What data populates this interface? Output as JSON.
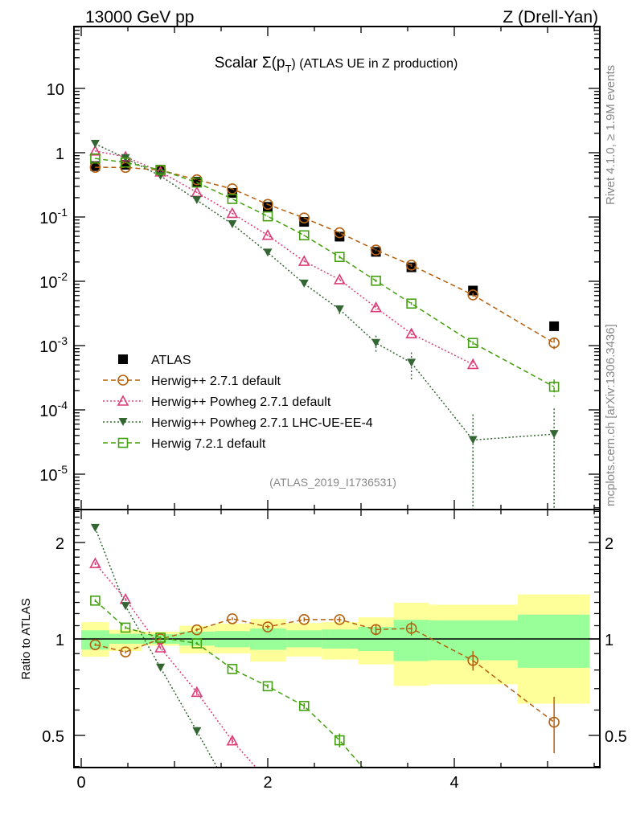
{
  "header": {
    "left": "13000 GeV pp",
    "right": "Z (Drell-Yan)",
    "title_prefix": "Scalar Σ(p",
    "title_sub": "T",
    "title_suffix": ") (ATLAS UE in Z production)",
    "side_top": "Rivet 4.1.0, ≥ 1.9M events",
    "side_bottom": "mcplots.cern.ch [arXiv:1306.3436]",
    "reference": "(ATLAS_2019_I1736531)"
  },
  "colors": {
    "atlas": "#000000",
    "herwigpp_default": "#b5600f",
    "powheg_default": "#dd3c78",
    "powheg_lhcue": "#336633",
    "herwig7": "#44a010",
    "band_total": "#ffff99",
    "band_stat": "#99ff99"
  },
  "chart_data": {
    "type": "scatter",
    "title": "Scalar Σ(p_T) (ATLAS UE in Z production)",
    "xlabel": "",
    "ylabel": "",
    "ratio_ylabel": "Ratio to ATLAS",
    "xlim": [
      -0.08,
      5.56
    ],
    "ylim_main": [
      2.8e-06,
      91
    ],
    "ylim_ratio": [
      0.397,
      2.53
    ],
    "yscale": "log",
    "x_ticks": [
      "0",
      "2",
      "4"
    ],
    "y_ticks_main": [
      "10",
      "1",
      "10^-1",
      "10^-2",
      "10^-3",
      "10^-4",
      "10^-5"
    ],
    "y_ticks_ratio": [
      "2",
      "1",
      "0.5"
    ],
    "legend_position": "lower-left",
    "bin_edges": [
      0,
      0.3,
      0.65,
      1.05,
      1.43,
      1.81,
      2.2,
      2.58,
      2.97,
      3.35,
      3.73,
      4.68,
      5.45
    ],
    "x": [
      0.15,
      0.475,
      0.85,
      1.24,
      1.62,
      2.0,
      2.39,
      2.77,
      3.16,
      3.54,
      4.2,
      5.07
    ],
    "band_stat": [
      [
        0.926,
        1.064
      ],
      [
        0.966,
        1.038
      ],
      [
        0.966,
        1.034
      ],
      [
        0.953,
        1.054
      ],
      [
        0.942,
        1.058
      ],
      [
        0.925,
        1.078
      ],
      [
        0.942,
        1.064
      ],
      [
        0.933,
        1.07
      ],
      [
        0.917,
        1.091
      ],
      [
        0.853,
        1.147
      ],
      [
        0.858,
        1.143
      ],
      [
        0.813,
        1.191
      ]
    ],
    "band_total": [
      [
        0.88,
        1.128
      ],
      [
        0.917,
        1.068
      ],
      [
        0.953,
        1.054
      ],
      [
        0.902,
        1.099
      ],
      [
        0.902,
        1.117
      ],
      [
        0.85,
        1.154
      ],
      [
        0.882,
        1.121
      ],
      [
        0.863,
        1.128
      ],
      [
        0.833,
        1.168
      ],
      [
        0.714,
        1.297
      ],
      [
        0.722,
        1.279
      ],
      [
        0.628,
        1.377
      ]
    ],
    "series": [
      {
        "name": "ATLAS",
        "key": "atlas",
        "marker": "filled-square",
        "line": "none",
        "values": [
          0.618,
          0.649,
          0.536,
          0.355,
          0.237,
          0.144,
          0.084,
          0.0495,
          0.0287,
          0.0165,
          0.00718,
          0.002
        ],
        "rel_err": [
          0,
          0,
          0,
          0,
          0,
          0,
          0,
          0,
          0,
          0,
          0,
          0
        ]
      },
      {
        "name": "Herwig++ 2.7.1 default",
        "key": "herwigpp_default",
        "marker": "open-circle",
        "line": "dashed",
        "values": [
          0.593,
          0.591,
          0.536,
          0.379,
          0.274,
          0.157,
          0.0966,
          0.0569,
          0.0307,
          0.0178,
          0.00615,
          0.0011
        ],
        "rel_err": [
          0.01,
          0.01,
          0.01,
          0.01,
          0.01,
          0.015,
          0.015,
          0.02,
          0.04,
          0.05,
          0.07,
          0.2
        ]
      },
      {
        "name": "Herwig++ Powheg 2.7.1 default",
        "key": "powheg_default",
        "marker": "open-triangle-up",
        "line": "dotted",
        "values": [
          1.063,
          0.863,
          0.503,
          0.242,
          0.114,
          0.052,
          0.0205,
          0.0106,
          0.0039,
          0.00153,
          0.00051,
          null
        ],
        "rel_err": [
          0.01,
          0.01,
          0.01,
          0.02,
          0.02,
          0.03,
          0.04,
          0.05,
          0.08,
          0.15,
          0.12,
          0
        ]
      },
      {
        "name": "Herwig++ Powheg 2.7.1 LHC-UE-EE-4",
        "key": "powheg_lhcue",
        "marker": "filled-triangle-down",
        "line": "dotted",
        "values": [
          1.372,
          0.822,
          0.436,
          0.183,
          0.0773,
          0.0279,
          0.0092,
          0.00365,
          0.0011,
          0.00054,
          3.4e-05,
          4.2e-05
        ],
        "rel_err": [
          0.02,
          0.02,
          0.02,
          0.03,
          0.03,
          0.05,
          0.1,
          0.15,
          0.3,
          0.45,
          1.5,
          1.5
        ]
      },
      {
        "name": "Herwig 7.2.1 default",
        "key": "herwig7",
        "marker": "open-square",
        "line": "dashed",
        "values": [
          0.814,
          0.704,
          0.541,
          0.344,
          0.191,
          0.1025,
          0.0519,
          0.0239,
          0.0102,
          0.0045,
          0.0011,
          0.000229
        ],
        "rel_err": [
          0.01,
          0.01,
          0.01,
          0.01,
          0.01,
          0.015,
          0.02,
          0.05,
          0.05,
          0.05,
          0.06,
          0.3
        ]
      }
    ]
  }
}
